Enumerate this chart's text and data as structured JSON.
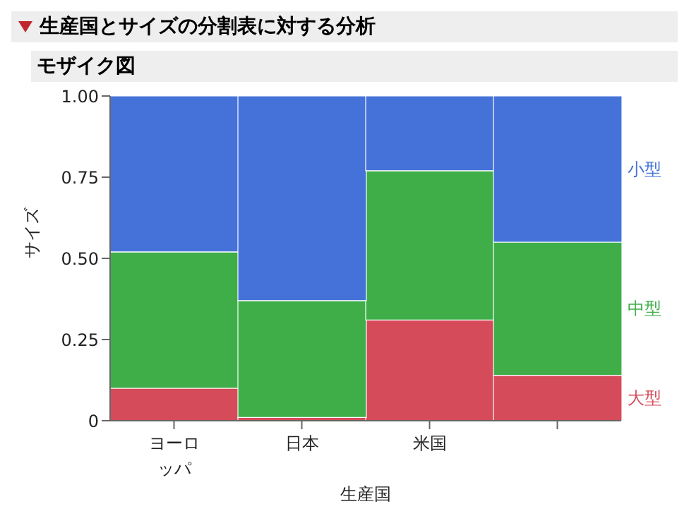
{
  "chart_data": {
    "type": "bar",
    "title": "生産国とサイズの分割表に対する分析",
    "subtitle": "モザイク図",
    "xlabel": "生産国",
    "ylabel": "サイズ",
    "categories": [
      "ヨーロッパ",
      "日本",
      "米国",
      null
    ],
    "stacked": true,
    "series": [
      {
        "name": "大型",
        "color": "#d64b5a",
        "values": [
          0.1,
          0.01,
          0.31,
          0.14
        ]
      },
      {
        "name": "中型",
        "color": "#3fae49",
        "values": [
          0.42,
          0.36,
          0.46,
          0.41
        ]
      },
      {
        "name": "小型",
        "color": "#4472d8",
        "values": [
          0.48,
          0.63,
          0.23,
          0.45
        ]
      }
    ],
    "ylim": [
      0,
      1
    ],
    "yticks": [
      0,
      {
        "value": 0.25,
        "label": "0.25"
      },
      {
        "value": 0.5,
        "label": "0.50"
      },
      {
        "value": 0.75,
        "label": "0.75"
      },
      {
        "value": 1,
        "label": "1.00"
      }
    ],
    "grid": false,
    "legend": "right"
  }
}
